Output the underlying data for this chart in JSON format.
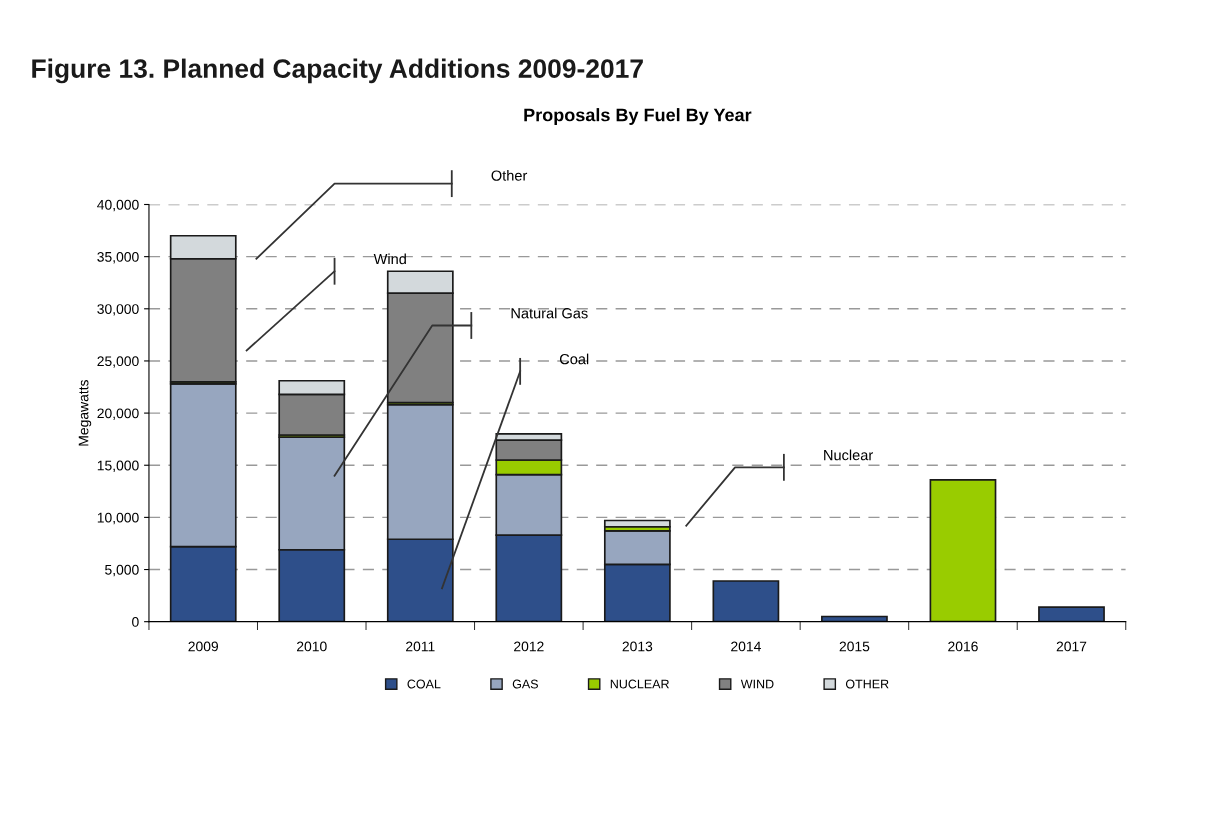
{
  "chart_data": {
    "type": "bar",
    "title": "Figure 13. Planned Capacity Additions 2009-2017",
    "subtitle": "Proposals By Fuel By Year",
    "ylabel": "Megawatts",
    "categories": [
      "2009",
      "2010",
      "2011",
      "2012",
      "2013",
      "2014",
      "2015",
      "2016",
      "2017"
    ],
    "stacked": true,
    "series": [
      {
        "name": "COAL",
        "color": "#2e4f8a",
        "values": [
          7200,
          6900,
          7900,
          8300,
          5500,
          3900,
          500,
          null,
          1400
        ]
      },
      {
        "name": "GAS",
        "color": "#97a6bf",
        "values": [
          15600,
          10800,
          12900,
          5800,
          3200,
          null,
          null,
          null,
          null
        ]
      },
      {
        "name": "NUCLEAR",
        "color": "#99cc00",
        "values": [
          200,
          200,
          200,
          1400,
          400,
          null,
          null,
          13600,
          null
        ]
      },
      {
        "name": "WIND",
        "color": "#808080",
        "values": [
          11800,
          3900,
          10500,
          1900,
          null,
          null,
          null,
          null,
          null
        ]
      },
      {
        "name": "OTHER",
        "color": "#d3d9dc",
        "values": [
          2200,
          1300,
          2100,
          600,
          600,
          null,
          null,
          null,
          null
        ]
      }
    ],
    "ylim": [
      0,
      40000
    ],
    "yticks": [
      {
        "value": 0,
        "label": "0"
      },
      {
        "value": 5000,
        "label": "5,000"
      },
      {
        "value": 10000,
        "label": "10,000"
      },
      {
        "value": 15000,
        "label": "15,000"
      },
      {
        "value": 20000,
        "label": "20,000"
      },
      {
        "value": 25000,
        "label": "25,000"
      },
      {
        "value": 30000,
        "label": "30,000"
      },
      {
        "value": 35000,
        "label": "35,000"
      },
      {
        "value": 40000,
        "label": "40,000"
      }
    ],
    "grid": "y",
    "legend": "bottom",
    "annotations": [
      "Other",
      "Wind",
      "Natural Gas",
      "Coal",
      "Nuclear"
    ]
  }
}
